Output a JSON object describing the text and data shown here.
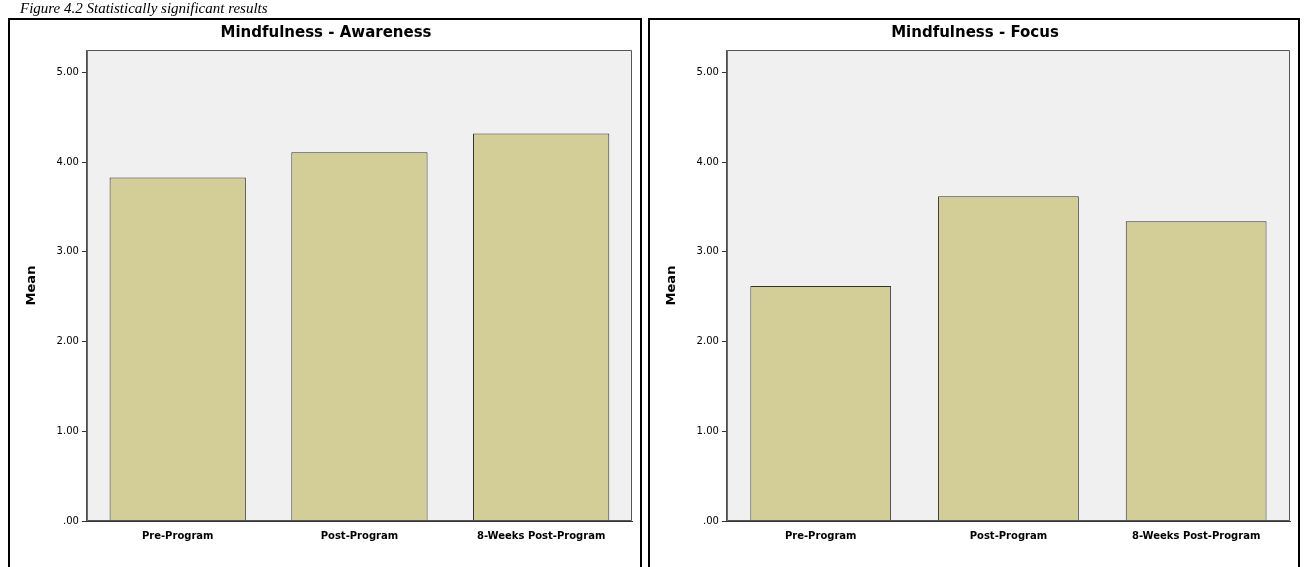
{
  "chart_data": [
    {
      "type": "bar",
      "title": "Mindfulness - Awareness",
      "ylabel": "Mean",
      "annotations": [
        "Figure 4.2 Statistically significant results"
      ],
      "categories": [
        "Pre-Program",
        "Post-Program",
        "8-Weeks Post-Program"
      ],
      "values": [
        3.83,
        4.11,
        4.32
      ],
      "color": "#d3ce97",
      "ylim": [
        0,
        5.25
      ],
      "yticks": [
        {
          "value": 0,
          "label": ".00"
        },
        {
          "value": 1,
          "label": "1.00"
        },
        {
          "value": 2,
          "label": "2.00"
        },
        {
          "value": 3,
          "label": "3.00"
        },
        {
          "value": 4,
          "label": "4.00"
        },
        {
          "value": 5,
          "label": "5.00"
        }
      ],
      "grid": false,
      "legend": false
    },
    {
      "type": "bar",
      "title": "Mindfulness - Focus",
      "ylabel": "Mean",
      "categories": [
        "Pre-Program",
        "Post-Program",
        "8-Weeks Post-Program"
      ],
      "values": [
        2.62,
        3.62,
        3.34
      ],
      "color": "#d3ce97",
      "ylim": [
        0,
        5.25
      ],
      "yticks": [
        {
          "value": 0,
          "label": ".00"
        },
        {
          "value": 1,
          "label": "1.00"
        },
        {
          "value": 2,
          "label": "2.00"
        },
        {
          "value": 3,
          "label": "3.00"
        },
        {
          "value": 4,
          "label": "4.00"
        },
        {
          "value": 5,
          "label": "5.00"
        }
      ],
      "grid": false,
      "legend": false
    }
  ]
}
